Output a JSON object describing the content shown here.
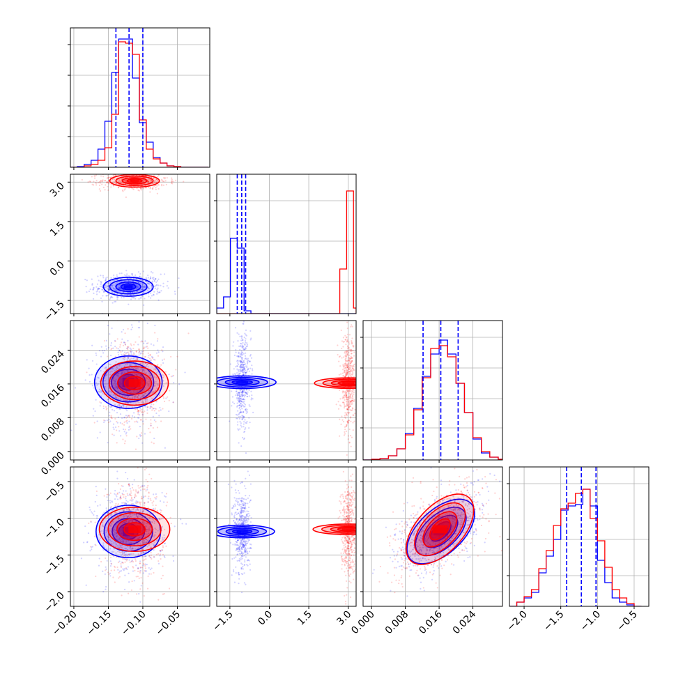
{
  "colors": {
    "series_a": "#0000ff",
    "series_b": "#ff0000",
    "grid": "#b0b0b0",
    "axis": "#000000"
  },
  "chart_data": {
    "type": "corner",
    "description_type": "histogram + contour/scatter corner plot",
    "grid": true,
    "series": [
      {
        "color": "#0000ff"
      },
      {
        "color": "#ff0000"
      }
    ],
    "parameters": [
      {
        "range": [
          -0.205,
          -0.003
        ],
        "ticks": [
          -0.2,
          -0.15,
          -0.1,
          -0.05
        ],
        "tick_labels": [
          "−0.20",
          "−0.15",
          "−0.10",
          "−0.05"
        ]
      },
      {
        "range": [
          -2.0,
          3.3
        ],
        "ticks": [
          -1.5,
          0.0,
          1.5,
          3.0
        ],
        "tick_labels": [
          "−1.5",
          "0.0",
          "1.5",
          "3.0"
        ]
      },
      {
        "range": [
          -0.002,
          0.031
        ],
        "ticks": [
          0.0,
          0.008,
          0.016,
          0.024
        ],
        "tick_labels": [
          "0.000",
          "0.008",
          "0.016",
          "0.024"
        ]
      },
      {
        "range": [
          -2.2,
          -0.3
        ],
        "ticks": [
          -2.0,
          -1.5,
          -1.0,
          -0.5
        ],
        "tick_labels": [
          "−2.0",
          "−1.5",
          "−1.0",
          "−0.5"
        ]
      }
    ],
    "histograms": [
      {
        "param": 0,
        "ymax": 1.0,
        "yticks": [
          0.22,
          0.44,
          0.66,
          0.88
        ],
        "edges": [
          -0.205,
          -0.195,
          -0.185,
          -0.175,
          -0.165,
          -0.155,
          -0.145,
          -0.135,
          -0.125,
          -0.115,
          -0.105,
          -0.095,
          -0.085,
          -0.075,
          -0.065,
          -0.055,
          -0.045,
          -0.035,
          -0.025,
          -0.015,
          -0.005
        ],
        "series": [
          [
            0.0,
            0.005,
            0.02,
            0.05,
            0.13,
            0.33,
            0.68,
            0.92,
            0.92,
            0.64,
            0.32,
            0.18,
            0.07,
            0.03,
            0.01,
            0.005,
            0.0,
            0.0,
            0.0,
            0.0
          ],
          [
            0.0,
            0.0,
            0.01,
            0.02,
            0.05,
            0.14,
            0.38,
            0.9,
            0.89,
            0.81,
            0.34,
            0.13,
            0.06,
            0.03,
            0.01,
            0.005,
            0.0,
            0.0,
            0.0,
            0.0
          ]
        ],
        "quantile_lines": [
          -0.139,
          -0.12,
          -0.1
        ]
      },
      {
        "param": 1,
        "ymax": 1.0,
        "yticks": [
          0.23,
          0.52,
          0.81
        ],
        "edges": [
          -2.0,
          -1.74,
          -1.48,
          -1.22,
          -0.96,
          -0.7,
          -0.44,
          -0.18,
          0.08,
          0.34,
          0.6,
          0.86,
          1.12,
          1.38,
          1.64,
          1.9,
          2.16,
          2.42,
          2.68,
          2.94,
          3.2,
          3.3
        ],
        "series": [
          [
            0.04,
            0.12,
            0.54,
            0.47,
            0.02,
            0,
            0,
            0,
            0,
            0,
            0,
            0,
            0,
            0,
            0,
            0,
            0,
            0,
            0,
            0,
            0
          ],
          [
            0,
            0,
            0,
            0,
            0,
            0,
            0,
            0,
            0,
            0,
            0,
            0,
            0,
            0,
            0,
            0,
            0,
            0,
            0.32,
            0.88,
            0.04
          ]
        ],
        "quantile_lines": [
          -1.22,
          -1.05,
          -0.9
        ]
      },
      {
        "param": 2,
        "ymax": 1.0,
        "yticks": [
          0.23,
          0.44,
          0.66,
          0.88
        ],
        "edges": [
          -0.002,
          0.0,
          0.002,
          0.004,
          0.006,
          0.008,
          0.01,
          0.012,
          0.014,
          0.016,
          0.018,
          0.02,
          0.022,
          0.024,
          0.026,
          0.028,
          0.03,
          0.031
        ],
        "series": [
          [
            0.0,
            0.005,
            0.01,
            0.03,
            0.08,
            0.19,
            0.37,
            0.6,
            0.76,
            0.86,
            0.76,
            0.55,
            0.34,
            0.15,
            0.05,
            0.02,
            0.005
          ],
          [
            0.0,
            0.005,
            0.01,
            0.03,
            0.08,
            0.18,
            0.36,
            0.59,
            0.8,
            0.82,
            0.74,
            0.55,
            0.34,
            0.16,
            0.06,
            0.02,
            0.005
          ]
        ],
        "quantile_lines": [
          0.0122,
          0.0164,
          0.0205
        ]
      },
      {
        "param": 3,
        "ymax": 1.0,
        "yticks": [
          0.22,
          0.48,
          0.88
        ],
        "edges": [
          -2.2,
          -2.1,
          -2.0,
          -1.9,
          -1.8,
          -1.7,
          -1.6,
          -1.5,
          -1.4,
          -1.3,
          -1.2,
          -1.1,
          -1.0,
          -0.9,
          -0.8,
          -0.7,
          -0.6,
          -0.5,
          -0.4
        ],
        "series": [
          [
            0.0,
            0.03,
            0.06,
            0.1,
            0.24,
            0.36,
            0.48,
            0.69,
            0.72,
            0.73,
            0.84,
            0.72,
            0.33,
            0.17,
            0.06,
            0.03,
            0.01,
            0.0
          ],
          [
            0.0,
            0.03,
            0.07,
            0.12,
            0.27,
            0.4,
            0.58,
            0.7,
            0.74,
            0.81,
            0.84,
            0.63,
            0.47,
            0.28,
            0.12,
            0.06,
            0.02,
            0.0
          ]
        ],
        "quantile_lines": [
          -1.42,
          -1.22,
          -1.02
        ]
      }
    ],
    "pairs": [
      {
        "x_param": 0,
        "y_param": 1,
        "blobs": [
          {
            "series": 0,
            "mean": [
              -0.121,
              -0.98
            ],
            "std": [
              0.018,
              0.18
            ],
            "corr": 0.0,
            "n": 600
          },
          {
            "series": 1,
            "mean": [
              -0.112,
              3.05
            ],
            "std": [
              0.018,
              0.12
            ],
            "corr": 0.0,
            "n": 600
          }
        ]
      },
      {
        "x_param": 0,
        "y_param": 2,
        "blobs": [
          {
            "series": 0,
            "mean": [
              -0.121,
              0.0164
            ],
            "std": [
              0.019,
              0.004
            ],
            "corr": 0.0,
            "n": 600
          },
          {
            "series": 1,
            "mean": [
              -0.112,
              0.0162
            ],
            "std": [
              0.016,
              0.004
            ],
            "corr": 0.0,
            "n": 600
          }
        ]
      },
      {
        "x_param": 1,
        "y_param": 2,
        "blobs": [
          {
            "series": 0,
            "mean": [
              -1.03,
              0.0164
            ],
            "std": [
              0.12,
              0.004
            ],
            "corr": 0.0,
            "n": 500
          },
          {
            "series": 1,
            "mean": [
              3.0,
              0.0162
            ],
            "std": [
              0.1,
              0.004
            ],
            "corr": 0.0,
            "n": 500
          }
        ]
      },
      {
        "x_param": 0,
        "y_param": 3,
        "blobs": [
          {
            "series": 0,
            "mean": [
              -0.121,
              -1.18
            ],
            "std": [
              0.019,
              0.22
            ],
            "corr": 0.0,
            "n": 600
          },
          {
            "series": 1,
            "mean": [
              -0.112,
              -1.15
            ],
            "std": [
              0.016,
              0.24
            ],
            "corr": 0.0,
            "n": 600
          }
        ]
      },
      {
        "x_param": 1,
        "y_param": 3,
        "blobs": [
          {
            "series": 0,
            "mean": [
              -1.03,
              -1.18
            ],
            "std": [
              0.12,
              0.22
            ],
            "corr": 0.0,
            "n": 500
          },
          {
            "series": 1,
            "mean": [
              3.0,
              -1.15
            ],
            "std": [
              0.1,
              0.24
            ],
            "corr": 0.0,
            "n": 500
          }
        ]
      },
      {
        "x_param": 2,
        "y_param": 3,
        "blobs": [
          {
            "series": 0,
            "mean": [
              0.0164,
              -1.18
            ],
            "std": [
              0.004,
              0.22
            ],
            "corr": 0.55,
            "n": 600
          },
          {
            "series": 1,
            "mean": [
              0.0162,
              -1.15
            ],
            "std": [
              0.004,
              0.24
            ],
            "corr": 0.55,
            "n": 600
          }
        ]
      }
    ]
  }
}
